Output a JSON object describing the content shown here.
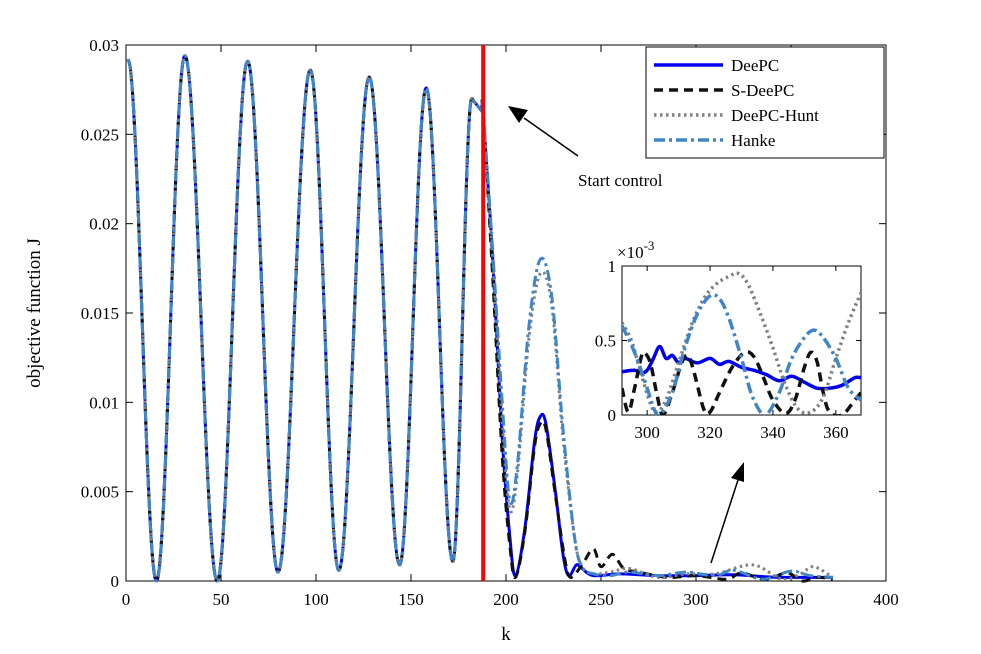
{
  "chart_data": [
    {
      "type": "line",
      "title": "",
      "xlabel": "k",
      "ylabel": "objective function J",
      "xlim": [
        0,
        400
      ],
      "ylim": [
        0,
        0.03
      ],
      "xticks": [
        "0",
        "50",
        "100",
        "150",
        "200",
        "250",
        "300",
        "350",
        "400"
      ],
      "yticks": [
        "0",
        "0.005",
        "0.01",
        "0.015",
        "0.02",
        "0.025",
        "0.03"
      ],
      "legend": {
        "position": "top-right",
        "entries": [
          "DeePC",
          "S-DeePC",
          "DeePC-Hunt",
          "Hanke"
        ]
      },
      "control_start": {
        "k": 188,
        "color": "#ff0000"
      },
      "annotation": {
        "text": "Start control",
        "points_to_k": 188
      },
      "pre_control": {
        "peaks": [
          [
            1,
            0.0292
          ],
          [
            31,
            0.0294
          ],
          [
            64,
            0.0291
          ],
          [
            97,
            0.0286
          ],
          [
            128,
            0.0282
          ],
          [
            158,
            0.0276
          ],
          [
            182,
            0.027
          ]
        ],
        "troughs": [
          [
            16,
            0.0
          ],
          [
            48,
            0.0
          ],
          [
            80,
            0.0005
          ],
          [
            112,
            0.0006
          ],
          [
            144,
            0.0009
          ],
          [
            172,
            0.0011
          ]
        ]
      },
      "series": [
        {
          "name": "DeePC",
          "color": "#0000ee",
          "style": "solid",
          "points": [
            [
              188,
              0.0262
            ],
            [
              193,
              0.018
            ],
            [
              198,
              0.008
            ],
            [
              202,
              0.0025
            ],
            [
              205,
              0.0003
            ],
            [
              210,
              0.003
            ],
            [
              215,
              0.0078
            ],
            [
              218,
              0.0092
            ],
            [
              221,
              0.0088
            ],
            [
              226,
              0.005
            ],
            [
              230,
              0.0015
            ],
            [
              233,
              0.0003
            ],
            [
              237,
              0.0009
            ],
            [
              240,
              0.0007
            ],
            [
              246,
              0.0003
            ],
            [
              260,
              0.0004
            ],
            [
              280,
              0.0003
            ],
            [
              300,
              0.0003
            ],
            [
              320,
              0.00035
            ],
            [
              340,
              0.00022
            ],
            [
              360,
              0.0002
            ],
            [
              372,
              0.0002
            ]
          ]
        },
        {
          "name": "S-DeePC",
          "color": "#111111",
          "style": "dashed",
          "points": [
            [
              188,
              0.0262
            ],
            [
              193,
              0.017
            ],
            [
              198,
              0.007
            ],
            [
              202,
              0.002
            ],
            [
              205,
              0.0002
            ],
            [
              210,
              0.0028
            ],
            [
              215,
              0.0075
            ],
            [
              218,
              0.0088
            ],
            [
              221,
              0.0085
            ],
            [
              226,
              0.0048
            ],
            [
              231,
              0.0012
            ],
            [
              234,
              0.0002
            ],
            [
              240,
              0.0009
            ],
            [
              246,
              0.0018
            ],
            [
              250,
              0.0008
            ],
            [
              256,
              0.0015
            ],
            [
              262,
              0.0007
            ],
            [
              270,
              0.0005
            ],
            [
              285,
              0.0002
            ],
            [
              300,
              0.0003
            ],
            [
              316,
              0.0001
            ],
            [
              324,
              0.00045
            ],
            [
              336,
              0.0001
            ],
            [
              348,
              0.00045
            ],
            [
              356,
              0.0
            ],
            [
              364,
              0.0002
            ],
            [
              372,
              0.0001
            ]
          ]
        },
        {
          "name": "DeePC-Hunt",
          "color": "#808080",
          "style": "dotted",
          "points": [
            [
              188,
              0.0262
            ],
            [
              193,
              0.018
            ],
            [
              198,
              0.009
            ],
            [
              202,
              0.004
            ],
            [
              206,
              0.006
            ],
            [
              212,
              0.0135
            ],
            [
              218,
              0.0172
            ],
            [
              224,
              0.0155
            ],
            [
              230,
              0.008
            ],
            [
              236,
              0.0025
            ],
            [
              240,
              0.0008
            ],
            [
              246,
              0.0004
            ],
            [
              255,
              0.0005
            ],
            [
              265,
              0.0007
            ],
            [
              280,
              0.0002
            ],
            [
              295,
              0.0004
            ],
            [
              310,
              0.0004
            ],
            [
              330,
              0.0009
            ],
            [
              345,
              0.0001
            ],
            [
              355,
              0.0004
            ],
            [
              362,
              0.0008
            ],
            [
              372,
              0.0002
            ]
          ]
        },
        {
          "name": "Hanke",
          "color": "#3f86c8",
          "style": "dashdot",
          "points": [
            [
              188,
              0.0262
            ],
            [
              193,
              0.0185
            ],
            [
              198,
              0.01
            ],
            [
              202,
              0.0045
            ],
            [
              206,
              0.0065
            ],
            [
              212,
              0.0142
            ],
            [
              218,
              0.018
            ],
            [
              224,
              0.016
            ],
            [
              230,
              0.0085
            ],
            [
              236,
              0.0025
            ],
            [
              240,
              0.0008
            ],
            [
              246,
              0.0004
            ],
            [
              255,
              0.0003
            ],
            [
              265,
              0.0005
            ],
            [
              280,
              0.0003
            ],
            [
              295,
              0.0005
            ],
            [
              310,
              0.0003
            ],
            [
              320,
              0.0006
            ],
            [
              335,
              0.0001
            ],
            [
              350,
              0.00055
            ],
            [
              360,
              0.0003
            ],
            [
              372,
              0.0002
            ]
          ]
        }
      ]
    },
    {
      "type": "line",
      "title": "",
      "exponent_label": "×10",
      "exponent_power": "-3",
      "xlim": [
        292,
        368
      ],
      "ylim": [
        0,
        1
      ],
      "xticks": [
        "300",
        "320",
        "340",
        "360"
      ],
      "yticks": [
        "0",
        "0.5",
        "1"
      ],
      "series": [
        {
          "name": "DeePC",
          "color": "#0000ee",
          "style": "solid",
          "points": [
            [
              292,
              0.29
            ],
            [
              296,
              0.3
            ],
            [
              298,
              0.28
            ],
            [
              300,
              0.3
            ],
            [
              302,
              0.38
            ],
            [
              304,
              0.46
            ],
            [
              306,
              0.38
            ],
            [
              308,
              0.4
            ],
            [
              310,
              0.35
            ],
            [
              312,
              0.38
            ],
            [
              316,
              0.35
            ],
            [
              320,
              0.38
            ],
            [
              323,
              0.34
            ],
            [
              326,
              0.36
            ],
            [
              330,
              0.32
            ],
            [
              334,
              0.3
            ],
            [
              338,
              0.27
            ],
            [
              342,
              0.23
            ],
            [
              346,
              0.26
            ],
            [
              350,
              0.22
            ],
            [
              354,
              0.18
            ],
            [
              358,
              0.18
            ],
            [
              362,
              0.2
            ],
            [
              366,
              0.25
            ],
            [
              368,
              0.25
            ]
          ]
        },
        {
          "name": "S-DeePC",
          "color": "#111111",
          "style": "dashed",
          "points": [
            [
              292,
              0.18
            ],
            [
              294,
              0.02
            ],
            [
              296,
              0.18
            ],
            [
              298,
              0.38
            ],
            [
              299,
              0.42
            ],
            [
              301,
              0.35
            ],
            [
              303,
              0.15
            ],
            [
              305,
              0.0
            ],
            [
              308,
              0.15
            ],
            [
              311,
              0.35
            ],
            [
              313,
              0.4
            ],
            [
              315,
              0.28
            ],
            [
              318,
              0.04
            ],
            [
              320,
              0.02
            ],
            [
              323,
              0.15
            ],
            [
              327,
              0.32
            ],
            [
              331,
              0.42
            ],
            [
              334,
              0.39
            ],
            [
              337,
              0.25
            ],
            [
              340,
              0.1
            ],
            [
              344,
              0.01
            ],
            [
              347,
              0.1
            ],
            [
              350,
              0.32
            ],
            [
              352,
              0.42
            ],
            [
              354,
              0.36
            ],
            [
              356,
              0.15
            ],
            [
              358,
              0.02
            ],
            [
              362,
              0.0
            ],
            [
              366,
              0.1
            ],
            [
              368,
              0.15
            ]
          ]
        },
        {
          "name": "DeePC-Hunt",
          "color": "#808080",
          "style": "dotted",
          "points": [
            [
              292,
              0.62
            ],
            [
              295,
              0.5
            ],
            [
              298,
              0.28
            ],
            [
              301,
              0.08
            ],
            [
              303,
              0.02
            ],
            [
              306,
              0.1
            ],
            [
              310,
              0.35
            ],
            [
              314,
              0.6
            ],
            [
              318,
              0.78
            ],
            [
              322,
              0.88
            ],
            [
              326,
              0.93
            ],
            [
              329,
              0.95
            ],
            [
              332,
              0.88
            ],
            [
              336,
              0.68
            ],
            [
              340,
              0.45
            ],
            [
              344,
              0.2
            ],
            [
              348,
              0.04
            ],
            [
              352,
              0.02
            ],
            [
              356,
              0.12
            ],
            [
              360,
              0.38
            ],
            [
              364,
              0.62
            ],
            [
              368,
              0.82
            ]
          ]
        },
        {
          "name": "Hanke",
          "color": "#3f86c8",
          "style": "dashdot",
          "points": [
            [
              292,
              0.6
            ],
            [
              296,
              0.42
            ],
            [
              300,
              0.18
            ],
            [
              302,
              0.05
            ],
            [
              304,
              0.0
            ],
            [
              308,
              0.15
            ],
            [
              312,
              0.45
            ],
            [
              316,
              0.68
            ],
            [
              320,
              0.8
            ],
            [
              323,
              0.78
            ],
            [
              326,
              0.65
            ],
            [
              330,
              0.38
            ],
            [
              333,
              0.15
            ],
            [
              336,
              0.02
            ],
            [
              338,
              0.0
            ],
            [
              342,
              0.15
            ],
            [
              346,
              0.38
            ],
            [
              350,
              0.52
            ],
            [
              353,
              0.57
            ],
            [
              356,
              0.52
            ],
            [
              360,
              0.38
            ],
            [
              364,
              0.18
            ],
            [
              368,
              0.1
            ]
          ]
        }
      ]
    }
  ]
}
